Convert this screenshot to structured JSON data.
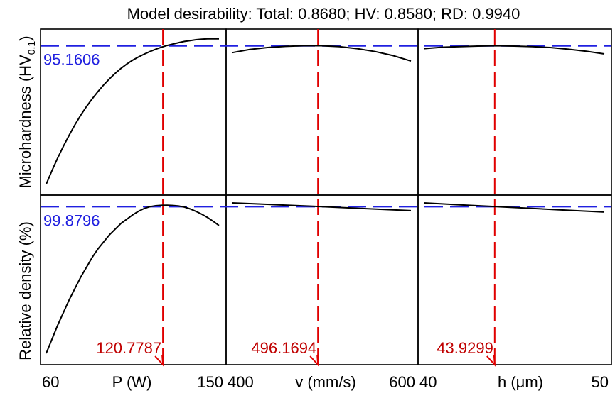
{
  "chart_data": {
    "type": "line",
    "title": "Model desirability: Total: 0.8680; HV: 0.8580; RD: 0.9940",
    "colors": {
      "curve": "#000000",
      "optimum_line": "#e00000",
      "optimum_label": "#c00000",
      "response_line": "#2020e0",
      "response_label": "#2020e0"
    },
    "grid": false,
    "factors": [
      {
        "name": "P (W)",
        "tick_labels": [
          "60",
          "150"
        ],
        "range": [
          60,
          150
        ],
        "optimum": 120.7787,
        "optimum_label": "120.7787"
      },
      {
        "name": "v (mm/s)",
        "tick_labels": [
          "400",
          "600"
        ],
        "range": [
          400,
          600
        ],
        "optimum": 496.1694,
        "optimum_label": "496.1694"
      },
      {
        "name": "h (μm)",
        "tick_labels": [
          "40",
          "50"
        ],
        "range": [
          40,
          50
        ],
        "optimum": 43.9299,
        "optimum_label": "43.9299"
      }
    ],
    "responses": [
      {
        "name": "Microhardness (HV",
        "subscript": "0.1",
        "suffix": ")",
        "optimum": 95.1606,
        "optimum_label": "95.1606",
        "ylim": [
          45,
          100
        ],
        "series": [
          {
            "x": [
              60,
              63,
              66,
              69,
              72,
              75,
              78,
              81,
              84,
              87,
              90,
              93,
              96,
              99,
              102,
              105,
              108,
              111,
              114,
              117,
              120,
              123,
              126,
              129,
              132,
              135,
              138,
              141,
              144,
              147,
              150
            ],
            "y": [
              47.3,
              52.0,
              56.4,
              60.5,
              64.3,
              67.9,
              71.2,
              74.2,
              76.9,
              79.4,
              81.7,
              83.8,
              85.7,
              87.4,
              88.9,
              90.2,
              91.3,
              92.3,
              93.2,
              94.0,
              94.7,
              95.3,
              95.8,
              96.3,
              96.7,
              97.0,
              97.3,
              97.5,
              97.6,
              97.6,
              97.6
            ]
          },
          {
            "x": [
              400,
              420,
              440,
              460,
              480,
              500,
              520,
              540,
              560,
              580,
              600
            ],
            "y": [
              92.8,
              93.9,
              94.6,
              95.0,
              95.2,
              95.2,
              94.9,
              94.2,
              93.2,
              91.8,
              89.9
            ]
          },
          {
            "x": [
              40,
              41,
              42,
              43,
              44,
              45,
              46,
              47,
              48,
              49,
              50
            ],
            "y": [
              94.2,
              94.7,
              94.9,
              95.1,
              95.2,
              95.1,
              94.9,
              94.6,
              94.0,
              93.3,
              92.4
            ]
          }
        ]
      },
      {
        "name": "Relative density (%)",
        "optimum": 99.8796,
        "optimum_label": "99.8796",
        "ylim": [
          89,
          100.5
        ],
        "series": [
          {
            "x": [
              60,
              63,
              66,
              69,
              72,
              75,
              78,
              81,
              84,
              87,
              90,
              93,
              96,
              99,
              102,
              105,
              108,
              111,
              114,
              117,
              120,
              123,
              126,
              129,
              132,
              135,
              138,
              141,
              144,
              147,
              150
            ],
            "y": [
              89.5,
              90.5,
              91.5,
              92.4,
              93.3,
              94.1,
              94.9,
              95.6,
              96.3,
              96.9,
              97.4,
              97.9,
              98.3,
              98.7,
              99.0,
              99.3,
              99.55,
              99.75,
              99.88,
              99.95,
              99.98,
              99.99,
              99.97,
              99.93,
              99.85,
              99.72,
              99.55,
              99.35,
              99.12,
              98.85,
              98.55
            ]
          },
          {
            "x": [
              400,
              450,
              500,
              550,
              600
            ],
            "y": [
              100.15,
              100.02,
              99.88,
              99.74,
              99.6
            ]
          },
          {
            "x": [
              40,
              42.5,
              45,
              47.5,
              50
            ],
            "y": [
              100.15,
              99.98,
              99.82,
              99.66,
              99.5
            ]
          }
        ]
      }
    ]
  }
}
